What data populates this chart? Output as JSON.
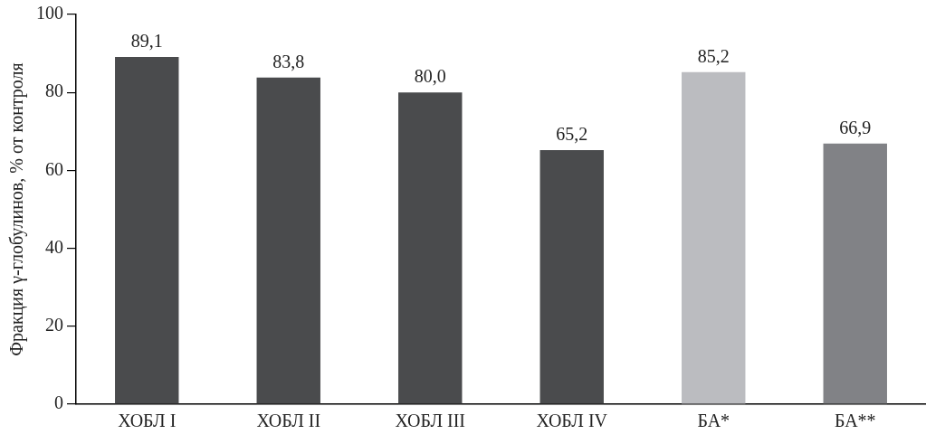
{
  "chart_data": {
    "type": "bar",
    "ylabel": "Фракция γ-глобулинов, % от контроля",
    "categories": [
      "ХОБЛ I",
      "ХОБЛ II",
      "ХОБЛ III",
      "ХОБЛ IV",
      "БА*",
      "БА**"
    ],
    "values": [
      89.1,
      83.8,
      80.0,
      65.2,
      85.2,
      66.9
    ],
    "colors": [
      "#4a4b4d",
      "#4a4b4d",
      "#4a4b4d",
      "#4a4b4d",
      "#bbbcc0",
      "#818286"
    ],
    "value_labels": [
      "89,1",
      "83,8",
      "80,0",
      "65,2",
      "85,2",
      "66,9"
    ],
    "ylim": [
      0,
      100
    ],
    "yticks": [
      0,
      20,
      40,
      60,
      80,
      100
    ],
    "grid": false
  }
}
